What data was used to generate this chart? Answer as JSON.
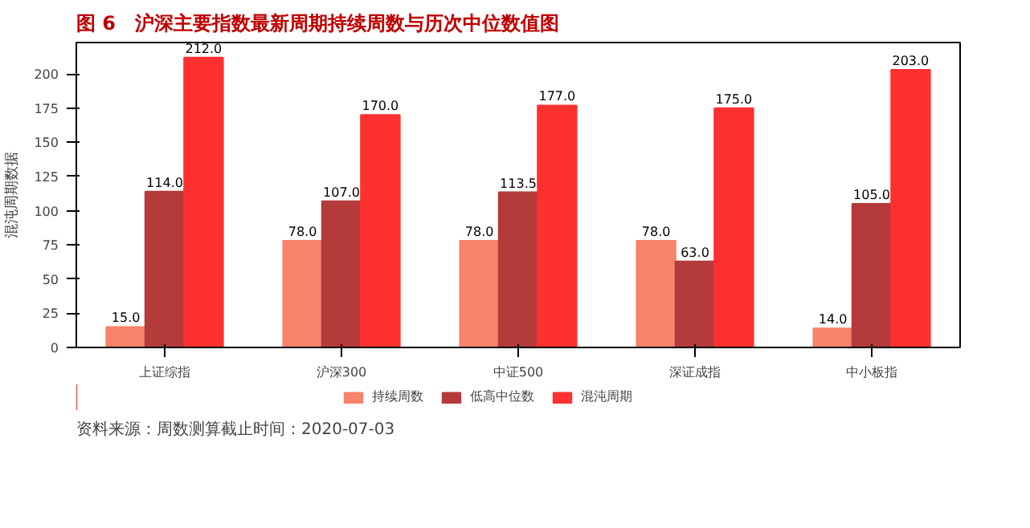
{
  "chart_data": {
    "type": "bar",
    "title": "图 6　沪深主要指数最新周期持续周数与历次中位数值图",
    "ylabel": "混沌周期数据",
    "categories": [
      "上证综指",
      "沪深300",
      "中证500",
      "深证成指",
      "中小板指"
    ],
    "series": [
      {
        "name": "持续周数",
        "color": "#f8836b",
        "values": [
          15,
          78,
          78,
          78,
          14
        ],
        "value_labels": [
          "15.0",
          "78.0",
          "78.0",
          "78.0",
          "14.0"
        ]
      },
      {
        "name": "低高中位数",
        "color": "#b53a3a",
        "values": [
          114,
          107,
          113.5,
          63,
          105
        ],
        "value_labels": [
          "114.0",
          "107.0",
          "113.5",
          "63.0",
          "105.0"
        ]
      },
      {
        "name": "混沌周期",
        "color": "#fe3030",
        "values": [
          212,
          170,
          177,
          175,
          203
        ],
        "value_labels": [
          "212.0",
          "170.0",
          "177.0",
          "175.0",
          "203.0"
        ]
      }
    ],
    "ylim": [
      0,
      223
    ],
    "yticks": [
      0,
      25,
      50,
      75,
      100,
      125,
      150,
      175,
      200
    ],
    "legend": "bottom",
    "annotations": [
      "资料来源：周数测算截止时间：2020-07-03"
    ]
  }
}
